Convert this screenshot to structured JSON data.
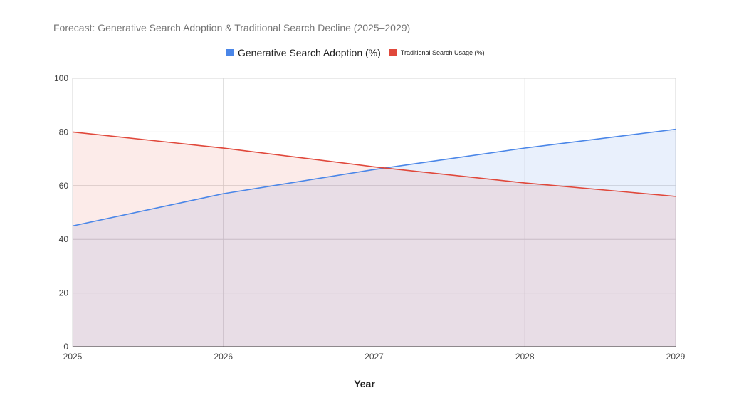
{
  "chart_data": {
    "type": "area",
    "title": "Forecast: Generative Search Adoption & Traditional Search Decline (2025–2029)",
    "xlabel": "Year",
    "ylabel": "",
    "categories": [
      "2025",
      "2026",
      "2027",
      "2028",
      "2029"
    ],
    "ylim": [
      0,
      100
    ],
    "yticks": [
      0,
      20,
      40,
      60,
      80,
      100
    ],
    "grid": true,
    "legend_position": "top",
    "series": [
      {
        "name": "Generative Search Adoption (%)",
        "values": [
          45,
          57,
          66,
          74,
          81
        ],
        "color": "#4a86e8"
      },
      {
        "name": "Traditional Search Usage (%)",
        "values": [
          80,
          74,
          67,
          61,
          56
        ],
        "color": "#e0483b"
      }
    ]
  }
}
